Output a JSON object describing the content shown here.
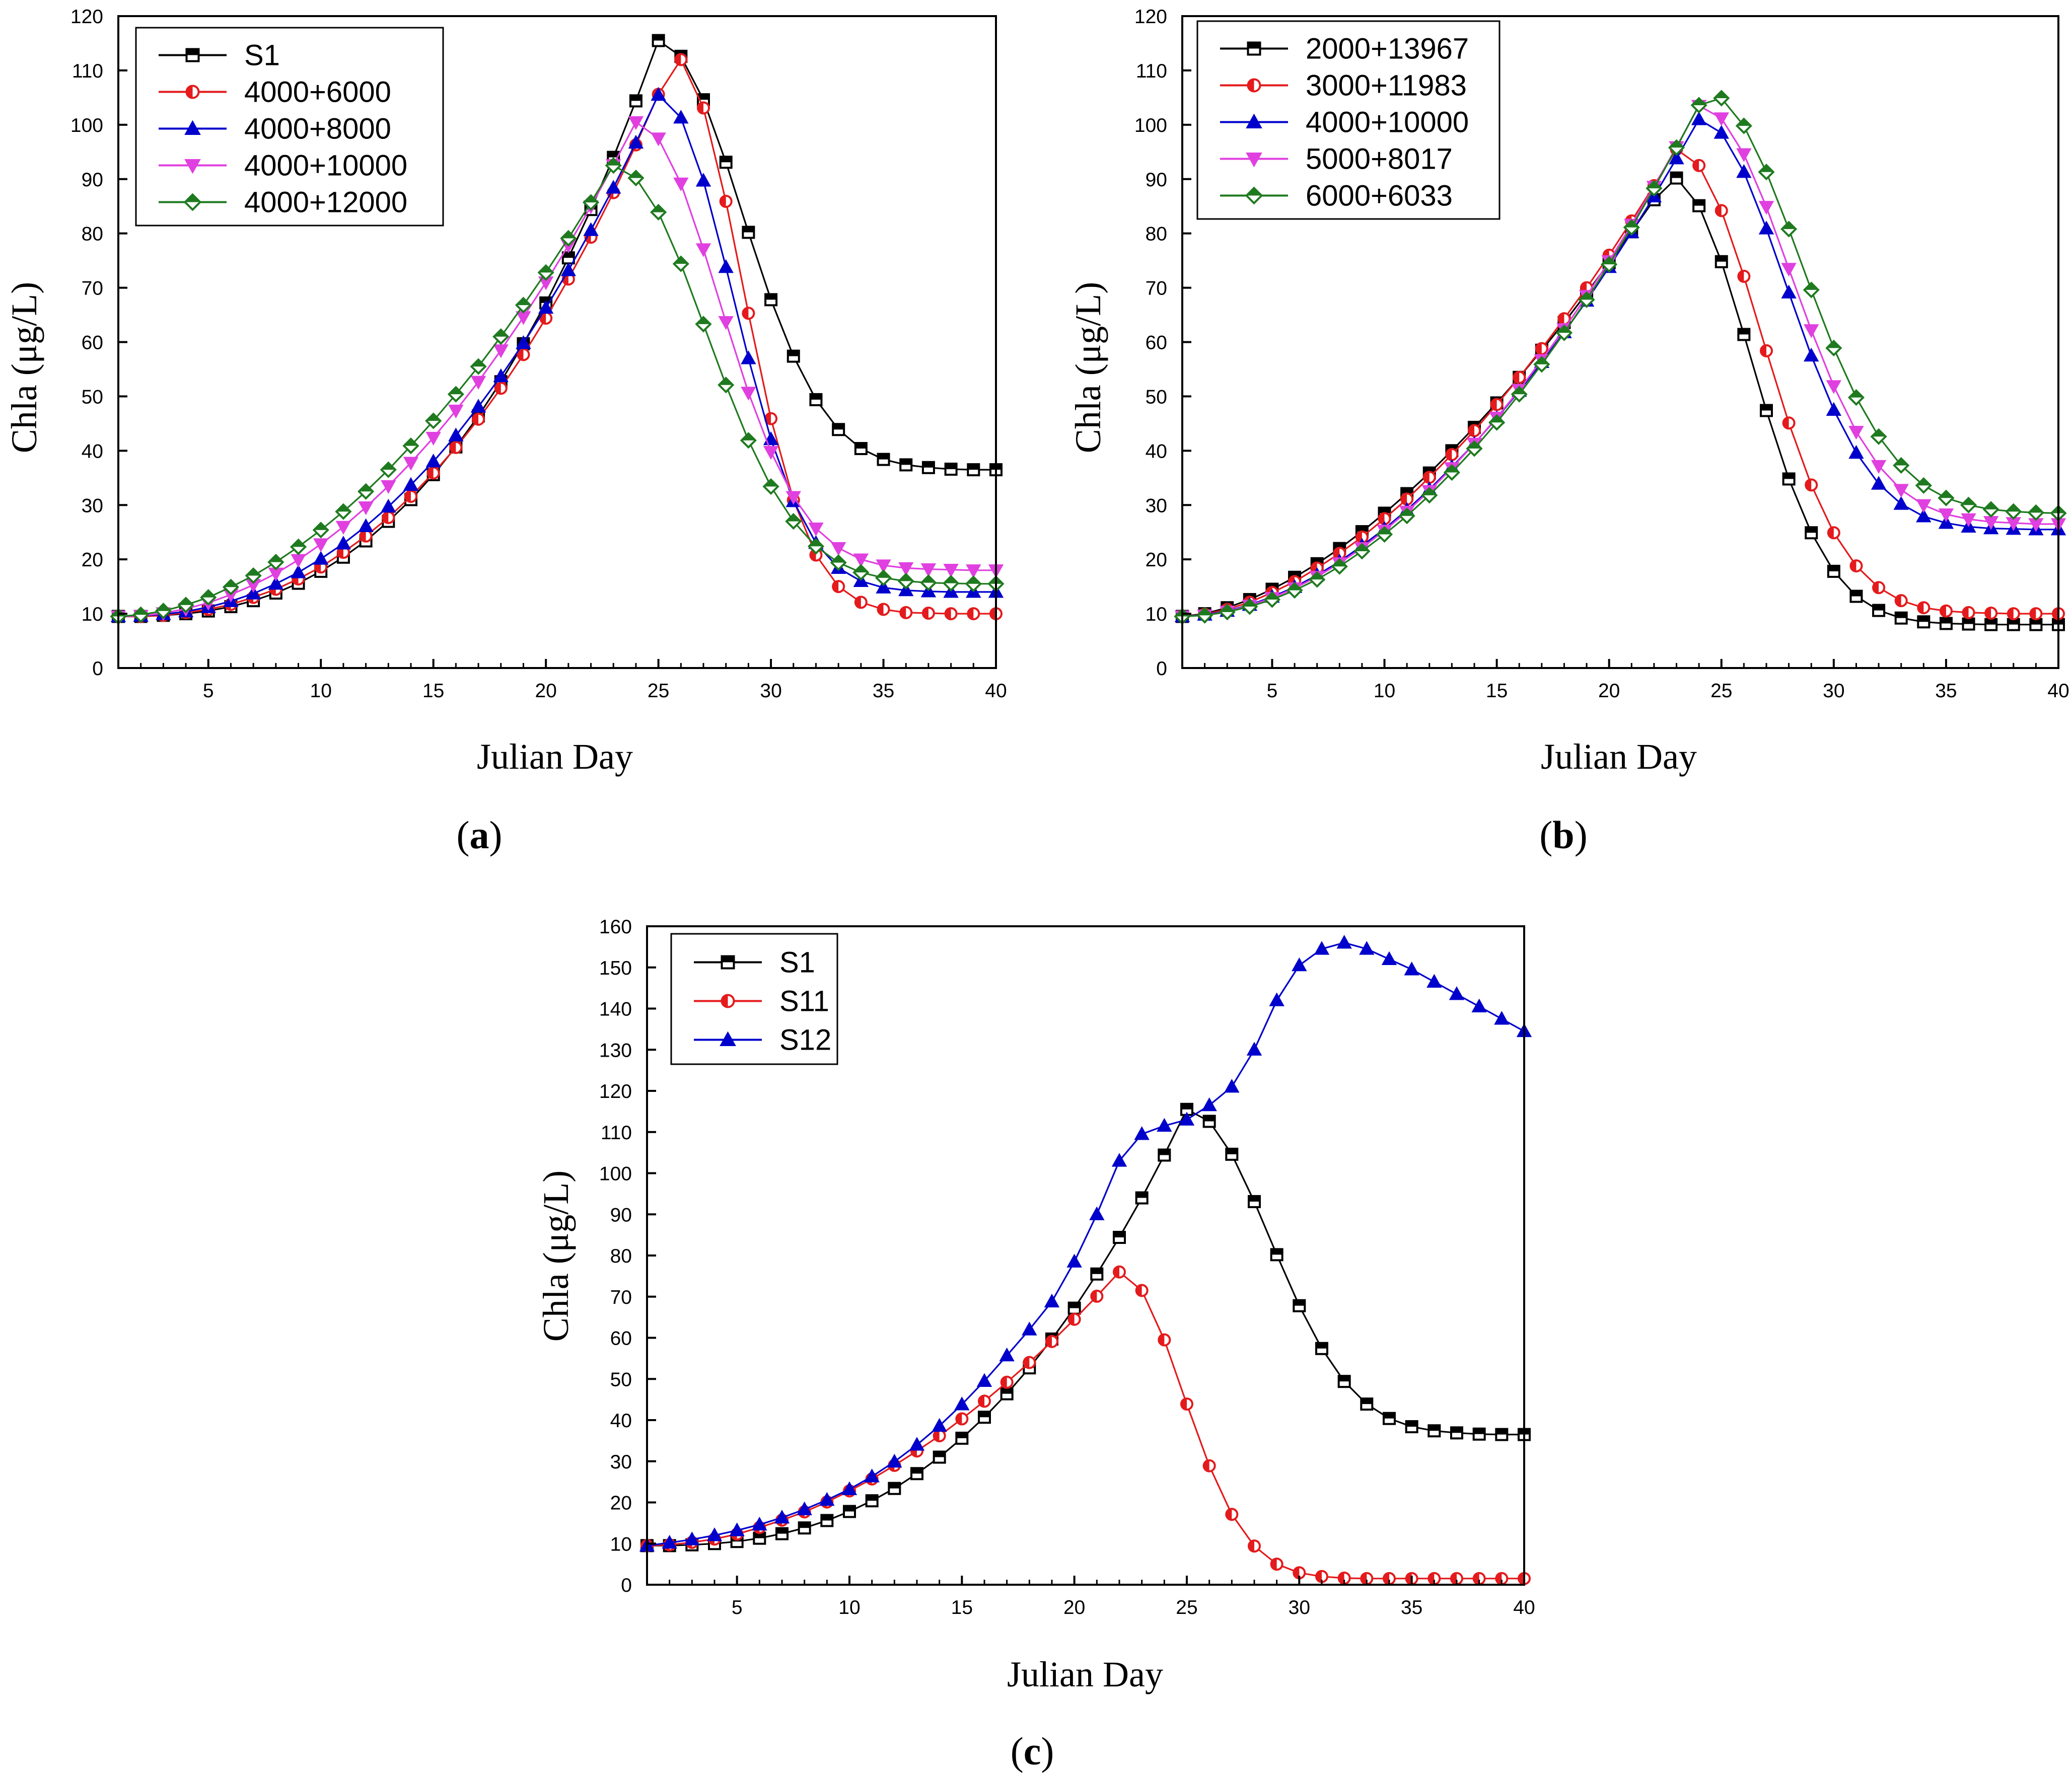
{
  "colors": {
    "s1": "#000000",
    "red": "#e41a1c",
    "blue": "#0000cc",
    "magenta": "#e040e0",
    "green": "#1f7a1f"
  },
  "chart_data": [
    {
      "panel": "a",
      "panel_label": "a",
      "type": "line",
      "xlabel": "Julian Day",
      "ylabel": "Chla  (μg/L)",
      "xlim": [
        1,
        40
      ],
      "ylim": [
        0,
        120
      ],
      "xticks": [
        5,
        10,
        15,
        20,
        25,
        30,
        35,
        40
      ],
      "yticks": [
        0,
        10,
        20,
        30,
        40,
        50,
        60,
        70,
        80,
        90,
        100,
        110,
        120
      ],
      "legend_position": "top-left",
      "series": [
        {
          "name": "S1",
          "marker": "square",
          "color": "#000000",
          "peak": 115.5,
          "peak_day": 25,
          "end": 36.5,
          "rise_exp": 2.6,
          "fall_width": 5.2
        },
        {
          "name": "4000+6000",
          "marker": "circle",
          "color": "#e41a1c",
          "peak": 112.5,
          "peak_day": 25.7,
          "end": 10,
          "rise_exp": 2.4,
          "fall_width": 4.2
        },
        {
          "name": "4000+8000",
          "marker": "triangle-up",
          "color": "#0000cc",
          "peak": 105.5,
          "peak_day": 25,
          "end": 14,
          "rise_exp": 2.25,
          "fall_width": 4.6
        },
        {
          "name": "4000+10000",
          "marker": "triangle-down",
          "color": "#e040e0",
          "peak": 100.5,
          "peak_day": 24,
          "end": 18,
          "rise_exp": 2.05,
          "fall_width": 5.2
        },
        {
          "name": "4000+12000",
          "marker": "diamond",
          "color": "#1f7a1f",
          "peak": 92.5,
          "peak_day": 23,
          "end": 15.5,
          "rise_exp": 1.85,
          "fall_width": 5.8
        }
      ]
    },
    {
      "panel": "b",
      "panel_label": "b",
      "type": "line",
      "xlabel": "Julian Day",
      "ylabel": "Chla  (μg/L)",
      "xlim": [
        1,
        40
      ],
      "ylim": [
        0,
        120
      ],
      "xticks": [
        5,
        10,
        15,
        20,
        25,
        30,
        35,
        40
      ],
      "yticks": [
        0,
        10,
        20,
        30,
        40,
        50,
        60,
        70,
        80,
        90,
        100,
        110,
        120
      ],
      "legend_position": "top-left",
      "series": [
        {
          "name": "2000+13967",
          "marker": "square",
          "color": "#000000",
          "peak": 90.5,
          "peak_day": 22.7,
          "end": 8,
          "rise_exp": 1.65,
          "fall_width": 5.0
        },
        {
          "name": "3000+11983",
          "marker": "circle",
          "color": "#e41a1c",
          "peak": 95.5,
          "peak_day": 23,
          "end": 10,
          "rise_exp": 1.75,
          "fall_width": 5.3
        },
        {
          "name": "4000+10000",
          "marker": "triangle-up",
          "color": "#0000cc",
          "peak": 101,
          "peak_day": 24,
          "end": 25.5,
          "rise_exp": 1.85,
          "fall_width": 5.4
        },
        {
          "name": "5000+8017",
          "marker": "triangle-down",
          "color": "#e040e0",
          "peak": 103.5,
          "peak_day": 24,
          "end": 26.5,
          "rise_exp": 1.9,
          "fall_width": 5.7
        },
        {
          "name": "6000+6033",
          "marker": "diamond",
          "color": "#1f7a1f",
          "peak": 106,
          "peak_day": 24.3,
          "end": 28.5,
          "rise_exp": 1.95,
          "fall_width": 5.9
        }
      ]
    },
    {
      "panel": "c",
      "panel_label": "c",
      "type": "line",
      "xlabel": "Julian Day",
      "ylabel": "Chla  (μg/L)",
      "xlim": [
        1,
        40
      ],
      "ylim": [
        0,
        160
      ],
      "xticks": [
        5,
        10,
        15,
        20,
        25,
        30,
        35,
        40
      ],
      "yticks": [
        0,
        10,
        20,
        30,
        40,
        50,
        60,
        70,
        80,
        90,
        100,
        110,
        120,
        130,
        140,
        150,
        160
      ],
      "legend_position": "top-left",
      "series": [
        {
          "name": "S1",
          "marker": "square",
          "color": "#000000",
          "peak": 115.5,
          "peak_day": 25,
          "end": 36.5,
          "rise_exp": 2.6,
          "fall_width": 5.2
        },
        {
          "name": "S11",
          "marker": "circle",
          "color": "#e41a1c",
          "peak": 76,
          "peak_day": 22,
          "end": 1.5,
          "rise_exp": 1.9,
          "fall_width": 4.0
        },
        {
          "name": "S12",
          "marker": "triangle-up",
          "color": "#0000cc",
          "values": [
            9.5,
            10.2,
            11.0,
            12.0,
            13.2,
            14.6,
            16.3,
            18.3,
            20.6,
            23.2,
            26.3,
            29.9,
            34.0,
            38.6,
            43.8,
            49.5,
            55.7,
            62.0,
            68.8,
            78.5,
            90.0,
            103.0,
            109.5,
            111.5,
            113.0,
            116.5,
            121.0,
            130.0,
            142.0,
            150.5,
            154.5,
            156.0,
            154.5,
            152.0,
            149.5,
            146.5,
            143.5,
            140.5,
            137.5,
            134.5
          ]
        }
      ]
    }
  ]
}
